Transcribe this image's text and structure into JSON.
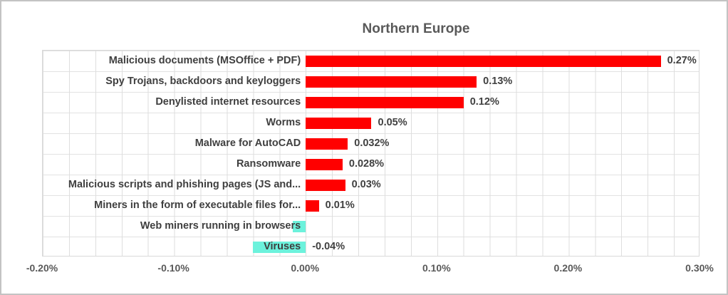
{
  "chart_data": {
    "type": "bar",
    "orientation": "horizontal",
    "title": "Northern Europe",
    "categories": [
      "Malicious documents (MSOffice + PDF)",
      "Spy Trojans, backdoors and keyloggers",
      "Denylisted internet resources",
      "Worms",
      "Malware for AutoCAD",
      "Ransomware",
      "Malicious scripts and phishing pages (JS and...",
      "Miners in the form of executable files for...",
      "Web miners running in browsers",
      "Viruses"
    ],
    "values": [
      0.27,
      0.13,
      0.12,
      0.05,
      0.032,
      0.028,
      0.03,
      0.01,
      -0.01,
      -0.04
    ],
    "unit": "%",
    "data_labels": [
      "0.27%",
      "0.13%",
      "0.12%",
      "0.05%",
      "0.032%",
      "0.028%",
      "0.03%",
      "0.01%",
      "",
      "-0.04%"
    ],
    "x_axis": {
      "min": -0.2,
      "max": 0.3,
      "tick_values": [
        -0.2,
        -0.1,
        0,
        0.1,
        0.2,
        0.3
      ],
      "tick_labels": [
        "-0.20%",
        "-0.10%",
        "0.00%",
        "0.10%",
        "0.20%",
        "0.30%"
      ],
      "minor_gridline_unit": 0.02
    },
    "grid": true,
    "legend": "none",
    "colors": {
      "positive_bar": "#FF0000",
      "negative_bar": "#6CF2DC",
      "title_text": "#595959",
      "category_text": "#3F3F3F",
      "axis_text": "#595959",
      "gridline": "#DEDEDE"
    }
  }
}
